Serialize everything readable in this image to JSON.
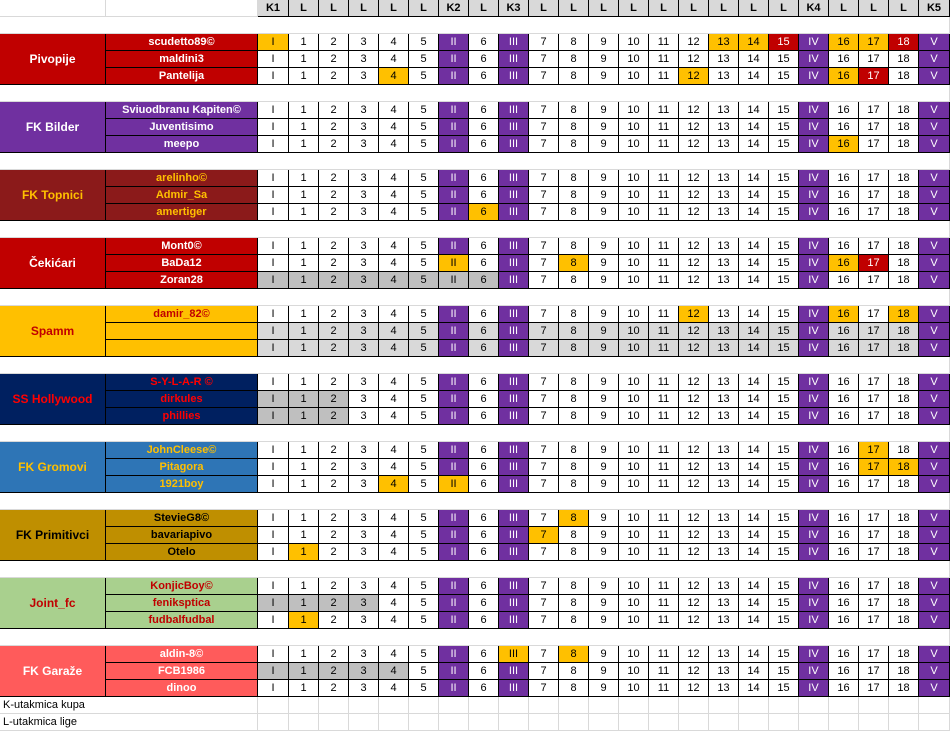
{
  "header": [
    "K1",
    "L",
    "L",
    "L",
    "L",
    "L",
    "K2",
    "L",
    "K3",
    "L",
    "L",
    "L",
    "L",
    "L",
    "L",
    "L",
    "L",
    "L",
    "K4",
    "L",
    "L",
    "L",
    "K5"
  ],
  "round_labels": [
    "I",
    "1",
    "2",
    "3",
    "4",
    "5",
    "II",
    "6",
    "III",
    "7",
    "8",
    "9",
    "10",
    "11",
    "12",
    "13",
    "14",
    "15",
    "IV",
    "16",
    "17",
    "18",
    "V"
  ],
  "colors": {
    "cup_purple": "#7030a0",
    "orange": "#ffc000",
    "dark_red": "#c00000",
    "gray": "#bfbfbf",
    "played_gray": "#d9d9d9"
  },
  "teams": [
    {
      "name": "Pivopije",
      "bg": "#c00000",
      "fg": "#ffffff",
      "player_bg": "#c00000",
      "player_fg": "#ffffff",
      "players": [
        {
          "name": "scudetto89©",
          "marks": {
            "0": "orange",
            "15": "orange",
            "16": "orange",
            "17": "dark_red",
            "19": "orange",
            "20": "orange",
            "21": "dark_red"
          }
        },
        {
          "name": "maldini3",
          "marks": {}
        },
        {
          "name": "Pantelija",
          "marks": {
            "4": "orange",
            "14": "orange",
            "19": "orange",
            "20": "dark_red"
          }
        }
      ]
    },
    {
      "name": "FK Bilder",
      "bg": "#7030a0",
      "fg": "#ffffff",
      "player_bg": "#7030a0",
      "player_fg": "#ffffff",
      "players": [
        {
          "name": "Sviuodbranu Kapiten©",
          "marks": {}
        },
        {
          "name": "Juventisimo",
          "marks": {}
        },
        {
          "name": "meepo",
          "marks": {
            "19": "orange"
          }
        }
      ]
    },
    {
      "name": "FK Topnici",
      "bg": "#8b1a1a",
      "fg": "#ffc000",
      "player_bg": "#8b1a1a",
      "player_fg": "#ffc000",
      "players": [
        {
          "name": "arelinho©",
          "marks": {}
        },
        {
          "name": "Admir_Sa",
          "marks": {}
        },
        {
          "name": "amertiger",
          "marks": {
            "7": "orange"
          }
        }
      ]
    },
    {
      "name": "Čekićari",
      "bg": "#c00000",
      "fg": "#ffffff",
      "player_bg": "#c00000",
      "player_fg": "#ffffff",
      "players": [
        {
          "name": "Mont0©",
          "marks": {}
        },
        {
          "name": "BaDa12",
          "marks": {
            "6": "orange",
            "10": "orange",
            "19": "orange",
            "20": "dark_red"
          }
        },
        {
          "name": "Zoran28",
          "marks": {
            "0": "gray",
            "1": "gray",
            "2": "gray",
            "3": "gray",
            "4": "gray",
            "5": "gray",
            "6": "gray",
            "7": "gray"
          }
        }
      ]
    },
    {
      "name": "Spamm",
      "bg": "#ffc000",
      "fg": "#c00000",
      "player_bg": "#ffc000",
      "player_fg": "#c00000",
      "players": [
        {
          "name": "damir_82©",
          "marks": {
            "14": "orange",
            "19": "orange",
            "21": "orange"
          }
        },
        {
          "name": "",
          "marks": {
            "all": "played_gray"
          }
        },
        {
          "name": "",
          "marks": {
            "all": "played_gray"
          }
        }
      ]
    },
    {
      "name": "SS Hollywood",
      "bg": "#002060",
      "fg": "#ff0000",
      "player_bg": "#002060",
      "player_fg": "#ff0000",
      "players": [
        {
          "name": "S-Y-L-A-R ©",
          "marks": {}
        },
        {
          "name": "dirkules",
          "marks": {
            "0": "gray",
            "1": "gray",
            "2": "gray"
          }
        },
        {
          "name": "phillies",
          "marks": {
            "0": "gray",
            "1": "gray",
            "2": "gray"
          }
        }
      ]
    },
    {
      "name": "FK Gromovi",
      "bg": "#2e75b6",
      "fg": "#ffc000",
      "player_bg": "#2e75b6",
      "player_fg": "#ffc000",
      "players": [
        {
          "name": "JohnCleese©",
          "marks": {
            "20": "orange"
          }
        },
        {
          "name": "Pitagora",
          "marks": {
            "20": "orange",
            "21": "orange"
          }
        },
        {
          "name": "1921boy",
          "marks": {
            "4": "orange",
            "6": "orange"
          }
        }
      ]
    },
    {
      "name": "FK Primitivci",
      "bg": "#bf8f00",
      "fg": "#000000",
      "player_bg": "#bf8f00",
      "player_fg": "#000000",
      "players": [
        {
          "name": "StevieG8©",
          "marks": {
            "10": "orange"
          }
        },
        {
          "name": "bavariapivo",
          "marks": {
            "9": "orange"
          }
        },
        {
          "name": "Otelo",
          "marks": {
            "1": "orange"
          }
        }
      ]
    },
    {
      "name": "Joint_fc",
      "bg": "#a9d08e",
      "fg": "#c00000",
      "player_bg": "#a9d08e",
      "player_fg": "#c00000",
      "players": [
        {
          "name": "KonjicBoy©",
          "marks": {}
        },
        {
          "name": "feniksptica",
          "marks": {
            "0": "gray",
            "1": "gray",
            "2": "gray",
            "3": "gray"
          }
        },
        {
          "name": "fudbalfudbal",
          "marks": {
            "1": "orange"
          }
        }
      ]
    },
    {
      "name": "FK Garaže",
      "bg": "#ff5b5b",
      "fg": "#ffffff",
      "player_bg": "#ff5b5b",
      "player_fg": "#ffffff",
      "players": [
        {
          "name": "aldin-8©",
          "marks": {
            "8": "orange",
            "10": "orange"
          }
        },
        {
          "name": "FCB1986",
          "marks": {
            "0": "gray",
            "1": "gray",
            "2": "gray",
            "3": "gray",
            "4": "gray"
          }
        },
        {
          "name": "dinoo",
          "marks": {}
        }
      ]
    }
  ],
  "legend": [
    "K-utakmica kupa",
    "L-utakmica lige"
  ]
}
